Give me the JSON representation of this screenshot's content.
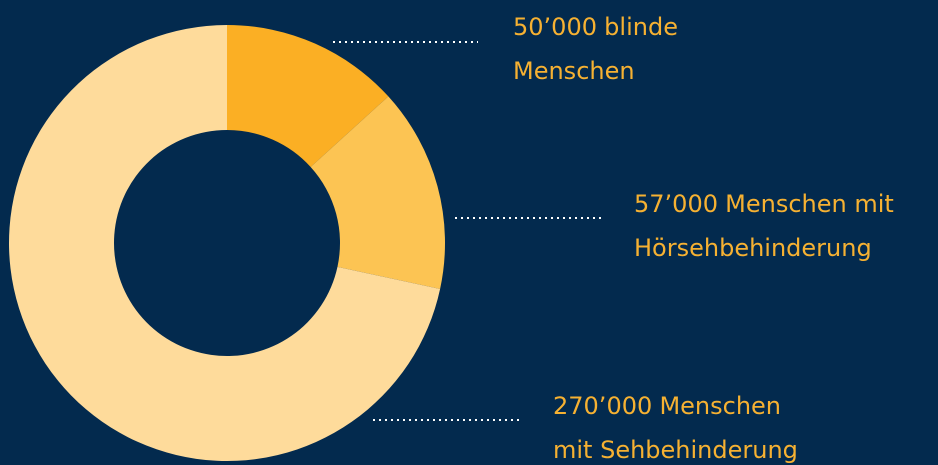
{
  "chart_data": {
    "type": "donut",
    "categories": [
      [
        "blinde",
        "Menschen"
      ],
      [
        "Menschen mit",
        "Hörsehbehinderung"
      ],
      [
        "Menschen",
        "mit Sehbehinderung"
      ]
    ],
    "values": [
      50000,
      57000,
      270000
    ],
    "value_labels": [
      "50’000",
      "57’000",
      "270’000"
    ],
    "colors": [
      "#fbaf24",
      "#fcc453",
      "#fedb9b"
    ]
  }
}
